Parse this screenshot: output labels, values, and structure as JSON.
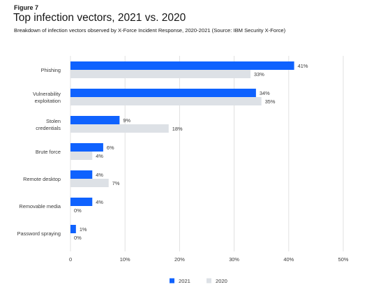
{
  "figure_label": "Figure 7",
  "title": "Top infection vectors, 2021 vs. 2020",
  "subtitle": "Breakdown of infection vectors observed by X-Force Incident Response, 2020-2021 (Source: IBM Security X-Force)",
  "colors": {
    "series_2021": "#0f62fe",
    "series_2020": "#dde1e6",
    "grid": "#e0e0e0",
    "text": "#393939"
  },
  "chart_data": {
    "type": "bar",
    "orientation": "horizontal",
    "title": "Top infection vectors, 2021 vs. 2020",
    "categories": [
      [
        "Phishing"
      ],
      [
        "Vulnerability",
        "exploitation"
      ],
      [
        "Stolen",
        "credentials"
      ],
      [
        "Brute force"
      ],
      [
        "Remote desktop"
      ],
      [
        "Removable media"
      ],
      [
        "Password spraying"
      ]
    ],
    "series": [
      {
        "name": "2021",
        "values": [
          41,
          34,
          9,
          6,
          4,
          4,
          1
        ]
      },
      {
        "name": "2020",
        "values": [
          33,
          35,
          18,
          4,
          7,
          0,
          0
        ]
      }
    ],
    "value_suffix": "%",
    "xlim": [
      0,
      50
    ],
    "xticks": [
      0,
      10,
      20,
      30,
      40,
      50
    ],
    "xtick_labels": [
      "0",
      "10%",
      "20%",
      "30%",
      "40%",
      "50%"
    ],
    "grid": "vertical",
    "legend": {
      "position": "bottom-center",
      "entries": [
        "2021",
        "2020"
      ]
    }
  }
}
